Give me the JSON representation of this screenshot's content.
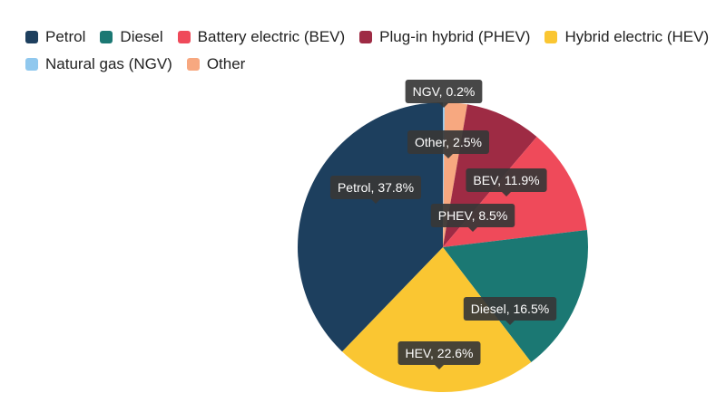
{
  "chart_data": {
    "type": "pie",
    "title": "",
    "legend_placement": "top-left",
    "series": [
      {
        "name": "Petrol",
        "value": 37.8,
        "color": "#1d3f5e",
        "label": "Petrol, 37.8%"
      },
      {
        "name": "Diesel",
        "value": 16.5,
        "color": "#1b7873",
        "label": "Diesel, 16.5%"
      },
      {
        "name": "Battery electric (BEV)",
        "value": 11.9,
        "color": "#ef4a5a",
        "label": "BEV, 11.9%"
      },
      {
        "name": "Plug-in hybrid (PHEV)",
        "value": 8.5,
        "color": "#9e2b44",
        "label": "PHEV, 8.5%"
      },
      {
        "name": "Hybrid electric (HEV)",
        "value": 22.6,
        "color": "#fac632",
        "label": "HEV, 22.6%"
      },
      {
        "name": "Natural gas (NGV)",
        "value": 0.2,
        "color": "#90c8ee",
        "label": "NGV, 0.2%"
      },
      {
        "name": "Other",
        "value": 2.5,
        "color": "#f7a880",
        "label": "Other, 2.5%"
      }
    ],
    "slice_order_clockwise_from_top": [
      5,
      6,
      3,
      2,
      1,
      4,
      0
    ]
  }
}
